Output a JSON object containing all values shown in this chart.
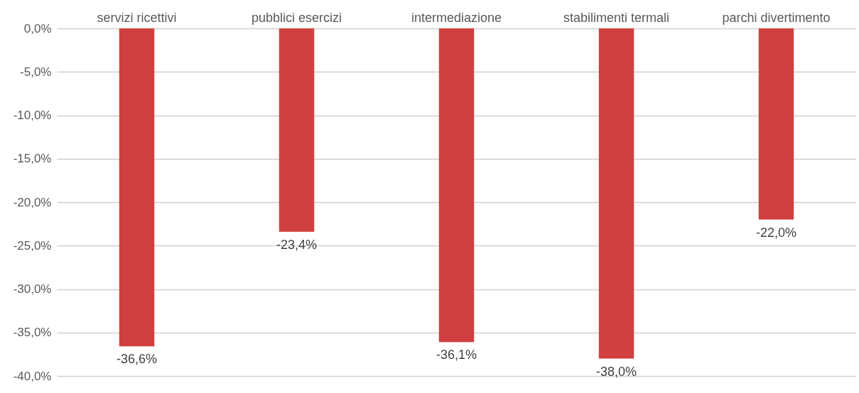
{
  "chart_data": {
    "type": "bar",
    "categories": [
      "servizi ricettivi",
      "pubblici esercizi",
      "intermediazione",
      "stabilimenti termali",
      "parchi divertimento"
    ],
    "values": [
      -36.6,
      -23.4,
      -36.1,
      -38.0,
      -22.0
    ],
    "value_labels": [
      "-36,6%",
      "-23,4%",
      "-36,1%",
      "-38,0%",
      "-22,0%"
    ],
    "color": "#d04040",
    "ylim": [
      -40,
      0
    ],
    "yticks": [
      {
        "value": 0,
        "label": "0,0%"
      },
      {
        "value": -5,
        "label": "-5,0%"
      },
      {
        "value": -10,
        "label": "-10,0%"
      },
      {
        "value": -15,
        "label": "-15,0%"
      },
      {
        "value": -20,
        "label": "-20,0%"
      },
      {
        "value": -25,
        "label": "-25,0%"
      },
      {
        "value": -30,
        "label": "-30,0%"
      },
      {
        "value": -35,
        "label": "-35,0%"
      },
      {
        "value": -40,
        "label": "-40,0%"
      }
    ],
    "grid": "y"
  }
}
